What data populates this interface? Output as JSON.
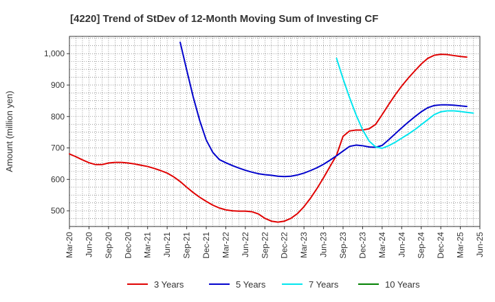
{
  "chart_data": {
    "type": "line",
    "title": "[4220]  Trend of StDev of 12-Month Moving Sum of Investing CF",
    "xlabel": "",
    "ylabel": "Amount (million yen)",
    "ylim": [
      450,
      1055
    ],
    "yticks": [
      500,
      600,
      700,
      800,
      900,
      1000
    ],
    "ytick_labels": [
      "500",
      "600",
      "700",
      "800",
      "900",
      "1,000"
    ],
    "xticks": [
      "Mar-20",
      "Jun-20",
      "Sep-20",
      "Dec-20",
      "Mar-21",
      "Jun-21",
      "Sep-21",
      "Dec-21",
      "Mar-22",
      "Jun-22",
      "Sep-22",
      "Dec-22",
      "Mar-23",
      "Jun-23",
      "Sep-23",
      "Dec-23",
      "Mar-24",
      "Jun-24",
      "Sep-24",
      "Dec-24",
      "Mar-25",
      "Jun-25"
    ],
    "grid": true,
    "legend_position": "bottom",
    "series": [
      {
        "name": "3 Years",
        "color": "#e00000",
        "points": [
          [
            "Mar-20",
            681
          ],
          [
            "Apr-20",
            672
          ],
          [
            "May-20",
            662
          ],
          [
            "Jun-20",
            653
          ],
          [
            "Jul-20",
            647
          ],
          [
            "Aug-20",
            647
          ],
          [
            "Sep-20",
            652
          ],
          [
            "Oct-20",
            654
          ],
          [
            "Nov-20",
            654
          ],
          [
            "Dec-20",
            652
          ],
          [
            "Jan-21",
            649
          ],
          [
            "Feb-21",
            645
          ],
          [
            "Mar-21",
            641
          ],
          [
            "Apr-21",
            635
          ],
          [
            "May-21",
            628
          ],
          [
            "Jun-21",
            620
          ],
          [
            "Jul-21",
            608
          ],
          [
            "Aug-21",
            593
          ],
          [
            "Sep-21",
            575
          ],
          [
            "Oct-21",
            558
          ],
          [
            "Nov-21",
            543
          ],
          [
            "Dec-21",
            530
          ],
          [
            "Jan-22",
            518
          ],
          [
            "Feb-22",
            509
          ],
          [
            "Mar-22",
            503
          ],
          [
            "Apr-22",
            500
          ],
          [
            "May-22",
            499
          ],
          [
            "Jun-22",
            499
          ],
          [
            "Jul-22",
            497
          ],
          [
            "Aug-22",
            490
          ],
          [
            "Sep-22",
            476
          ],
          [
            "Oct-22",
            467
          ],
          [
            "Nov-22",
            464
          ],
          [
            "Dec-22",
            467
          ],
          [
            "Jan-23",
            476
          ],
          [
            "Feb-23",
            491
          ],
          [
            "Mar-23",
            513
          ],
          [
            "Apr-23",
            540
          ],
          [
            "May-23",
            571
          ],
          [
            "Jun-23",
            605
          ],
          [
            "Jul-23",
            641
          ],
          [
            "Aug-23",
            677
          ],
          [
            "Sep-23",
            737
          ],
          [
            "Oct-23",
            754
          ],
          [
            "Nov-23",
            757
          ],
          [
            "Dec-23",
            757
          ],
          [
            "Jan-24",
            761
          ],
          [
            "Feb-24",
            775
          ],
          [
            "Mar-24",
            806
          ],
          [
            "Apr-24",
            838
          ],
          [
            "May-24",
            869
          ],
          [
            "Jun-24",
            897
          ],
          [
            "Jul-24",
            922
          ],
          [
            "Aug-24",
            945
          ],
          [
            "Sep-24",
            967
          ],
          [
            "Oct-24",
            985
          ],
          [
            "Nov-24",
            995
          ],
          [
            "Dec-24",
            998
          ],
          [
            "Jan-25",
            997
          ],
          [
            "Feb-25",
            994
          ],
          [
            "Mar-25",
            991
          ],
          [
            "Apr-25",
            989
          ]
        ]
      },
      {
        "name": "5 Years",
        "color": "#0000cc",
        "points": [
          [
            "Aug-21",
            1036
          ],
          [
            "Sep-21",
            948
          ],
          [
            "Oct-21",
            862
          ],
          [
            "Nov-21",
            787
          ],
          [
            "Dec-21",
            725
          ],
          [
            "Jan-22",
            686
          ],
          [
            "Feb-22",
            663
          ],
          [
            "Mar-22",
            653
          ],
          [
            "Apr-22",
            644
          ],
          [
            "May-22",
            636
          ],
          [
            "Jun-22",
            629
          ],
          [
            "Jul-22",
            623
          ],
          [
            "Aug-22",
            618
          ],
          [
            "Sep-22",
            615
          ],
          [
            "Oct-22",
            613
          ],
          [
            "Nov-22",
            610
          ],
          [
            "Dec-22",
            609
          ],
          [
            "Jan-23",
            610
          ],
          [
            "Feb-23",
            614
          ],
          [
            "Mar-23",
            620
          ],
          [
            "Apr-23",
            628
          ],
          [
            "May-23",
            637
          ],
          [
            "Jun-23",
            648
          ],
          [
            "Jul-23",
            661
          ],
          [
            "Aug-23",
            675
          ],
          [
            "Sep-23",
            690
          ],
          [
            "Oct-23",
            705
          ],
          [
            "Nov-23",
            709
          ],
          [
            "Dec-23",
            707
          ],
          [
            "Jan-24",
            703
          ],
          [
            "Feb-24",
            702
          ],
          [
            "Mar-24",
            708
          ],
          [
            "Apr-24",
            726
          ],
          [
            "May-24",
            745
          ],
          [
            "Jun-24",
            764
          ],
          [
            "Jul-24",
            782
          ],
          [
            "Aug-24",
            799
          ],
          [
            "Sep-24",
            815
          ],
          [
            "Oct-24",
            828
          ],
          [
            "Nov-24",
            835
          ],
          [
            "Dec-24",
            837
          ],
          [
            "Jan-25",
            837
          ],
          [
            "Feb-25",
            836
          ],
          [
            "Mar-25",
            834
          ],
          [
            "Apr-25",
            832
          ]
        ]
      },
      {
        "name": "7 Years",
        "color": "#00e5ee",
        "points": [
          [
            "Aug-23",
            985
          ],
          [
            "Sep-23",
            920
          ],
          [
            "Oct-23",
            860
          ],
          [
            "Nov-23",
            805
          ],
          [
            "Dec-23",
            758
          ],
          [
            "Jan-24",
            722
          ],
          [
            "Feb-24",
            703
          ],
          [
            "Mar-24",
            699
          ],
          [
            "Apr-24",
            707
          ],
          [
            "May-24",
            718
          ],
          [
            "Jun-24",
            731
          ],
          [
            "Jul-24",
            744
          ],
          [
            "Aug-24",
            758
          ],
          [
            "Sep-24",
            774
          ],
          [
            "Oct-24",
            790
          ],
          [
            "Nov-24",
            806
          ],
          [
            "Dec-24",
            815
          ],
          [
            "Jan-25",
            818
          ],
          [
            "Feb-25",
            818
          ],
          [
            "Mar-25",
            816
          ],
          [
            "Apr-25",
            813
          ],
          [
            "May-25",
            811
          ]
        ]
      },
      {
        "name": "10 Years",
        "color": "#008000",
        "points": []
      }
    ]
  }
}
